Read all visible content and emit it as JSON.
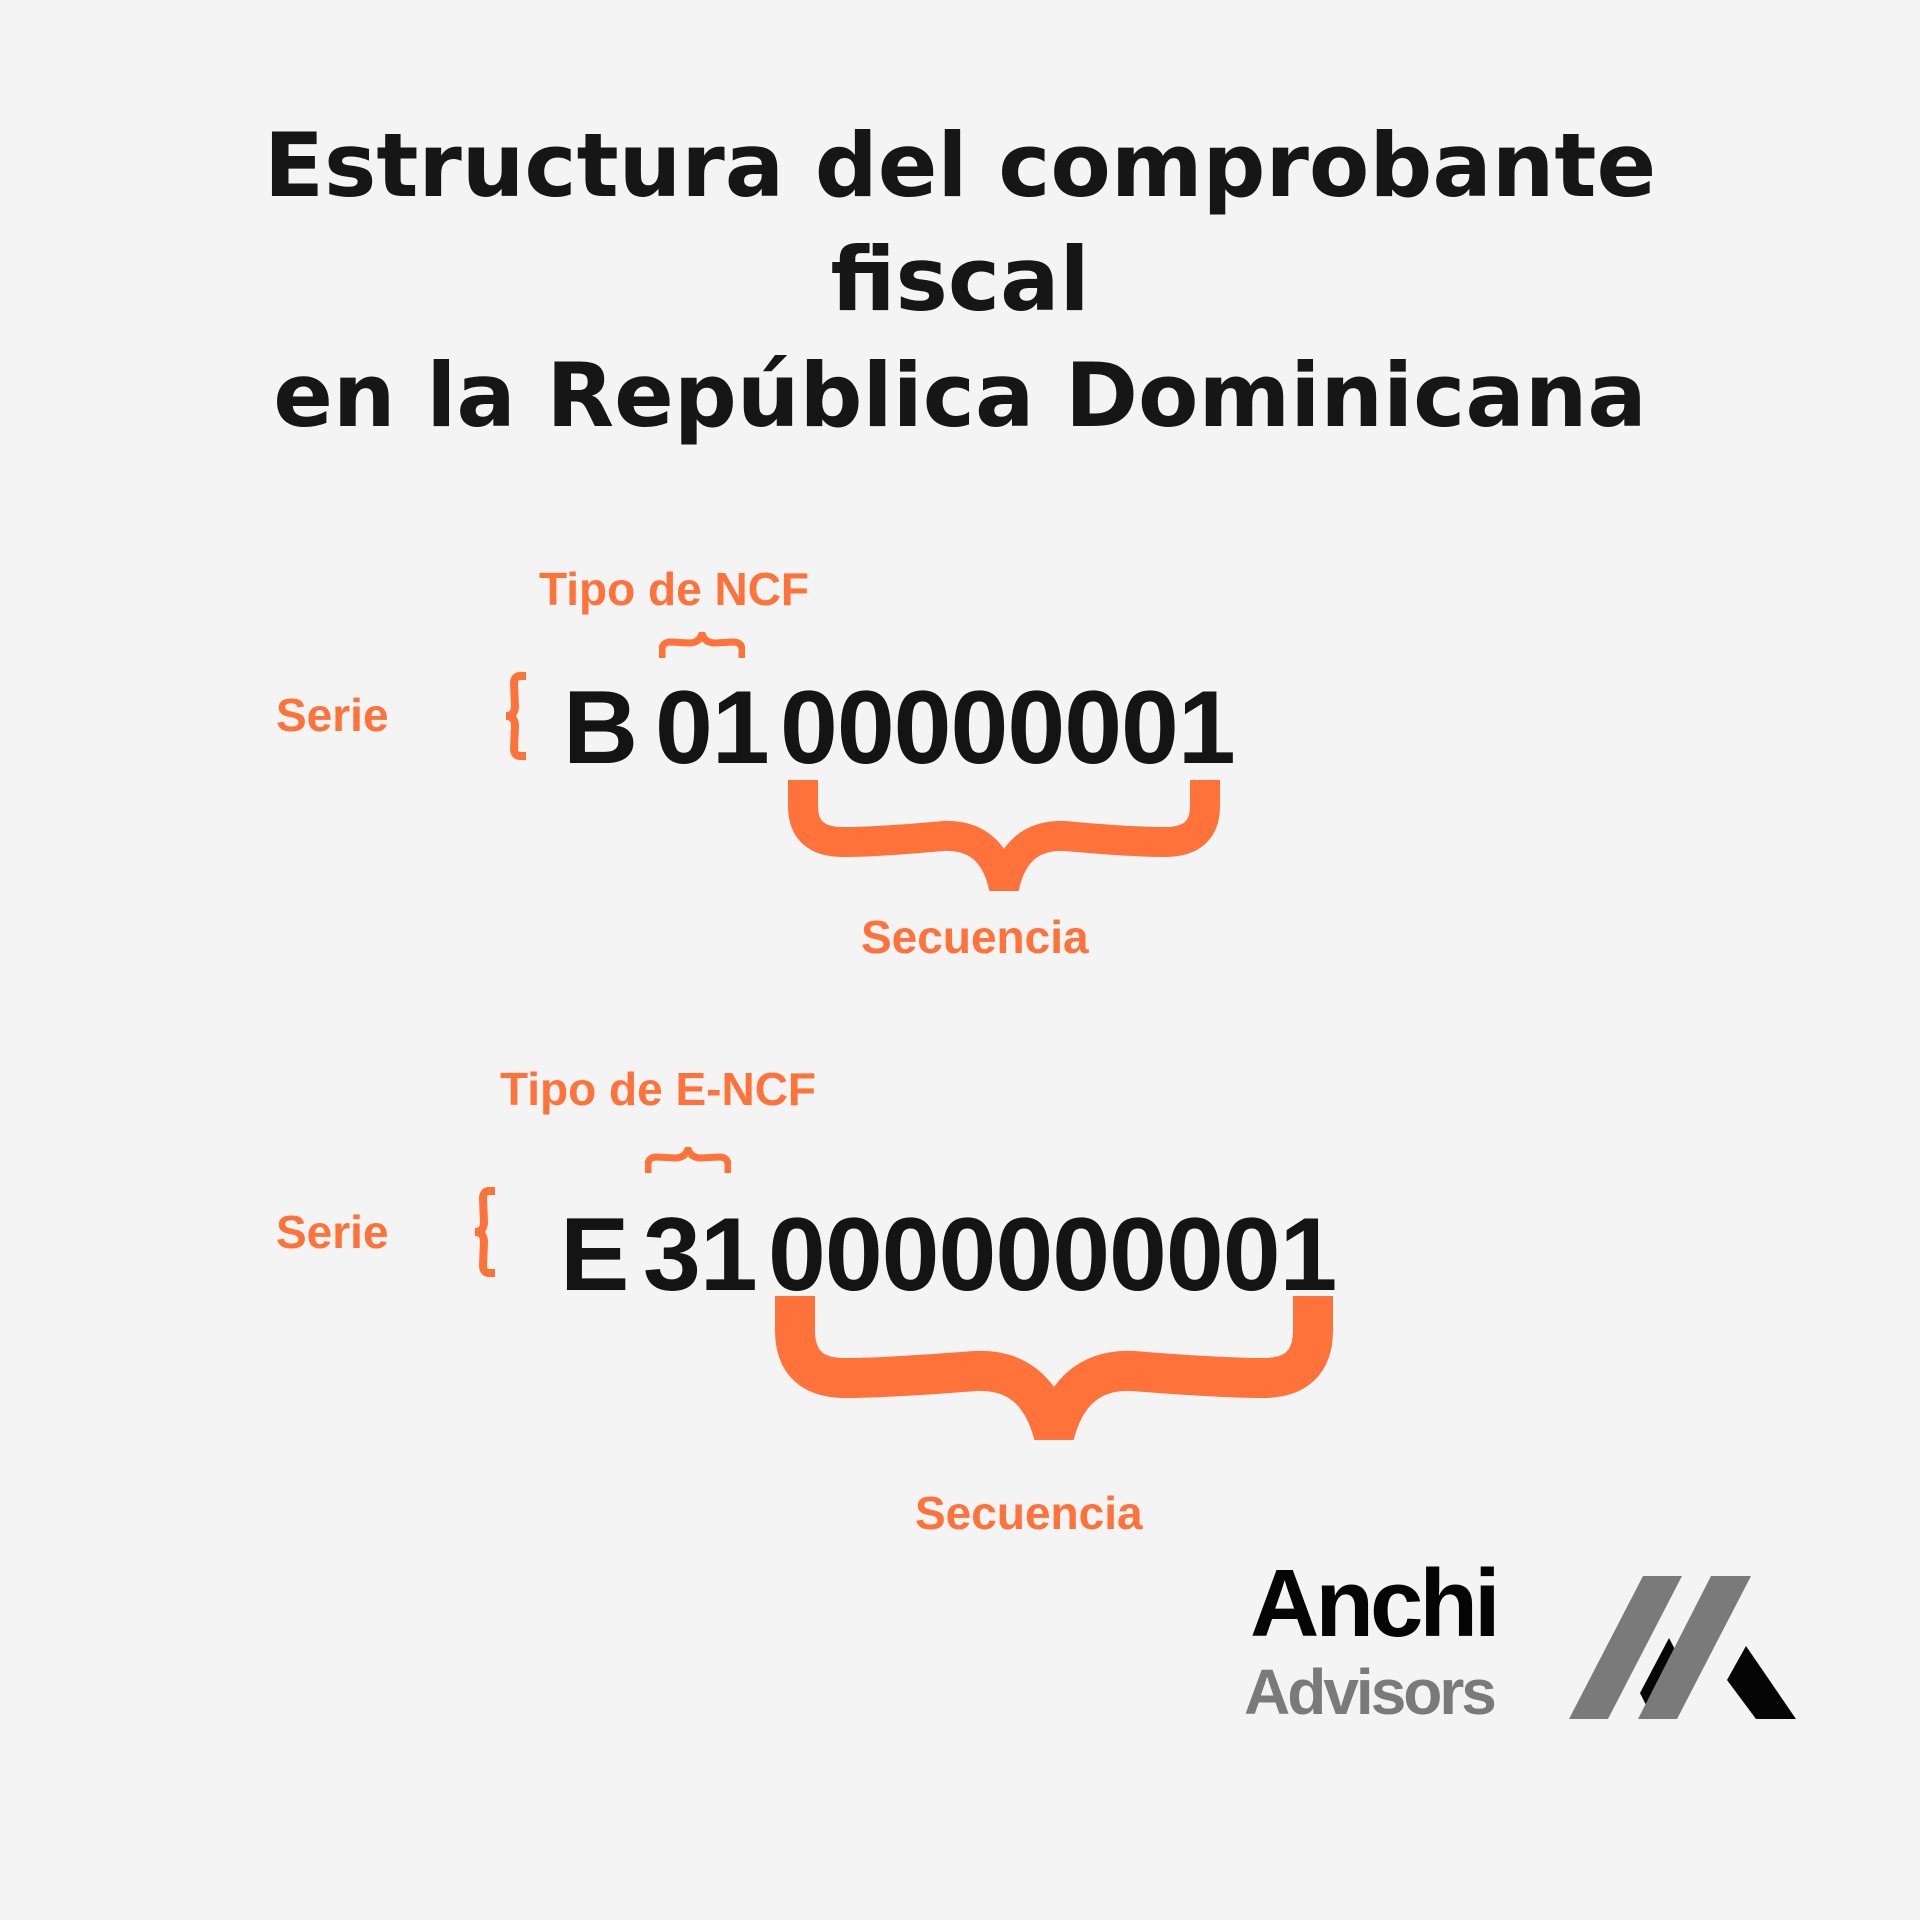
{
  "title": {
    "line1": "Estructura del comprobante",
    "line2": "fiscal",
    "line3": "en la República Dominicana"
  },
  "ncf": {
    "tipo_label": "Tipo de NCF",
    "serie_label": "Serie",
    "serie": "B",
    "tipo": "01",
    "secuencia": "00000001",
    "secuencia_label": "Secuencia"
  },
  "e_ncf": {
    "tipo_label": "Tipo de E-NCF",
    "serie_label": "Serie",
    "serie": "E",
    "tipo": "31",
    "secuencia": "0000000001",
    "secuencia_label": "Secuencia"
  },
  "logo": {
    "name": "Anchi",
    "sub": "Advisors"
  },
  "colors": {
    "accent": "#ff723a",
    "text": "#141414",
    "background": "#f4f4f4",
    "logo_gray": "#7a7a7a"
  }
}
